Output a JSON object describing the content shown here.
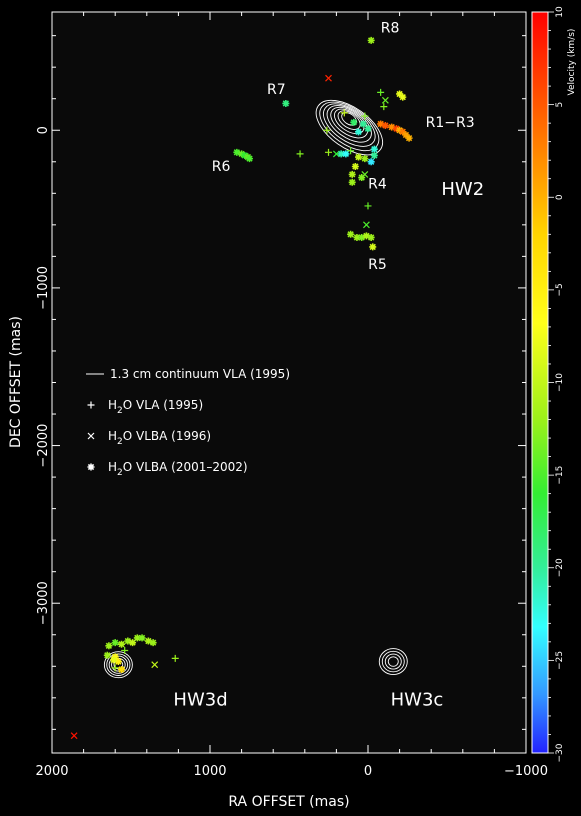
{
  "chart_data": {
    "type": "scatter",
    "xlabel": "RA OFFSET (mas)",
    "ylabel": "DEC OFFSET (mas)",
    "xlim": [
      2000,
      -1000
    ],
    "ylim": [
      -3950,
      750
    ],
    "xticks": [
      2000,
      1000,
      0,
      -1000
    ],
    "yticks": [
      0,
      -1000,
      -2000,
      -3000
    ],
    "grid": false,
    "background_color": "#0a0a0a",
    "colorbar": {
      "label": "Velocity (km/s)",
      "range": [
        -30,
        10
      ],
      "ticks": [
        10,
        5,
        0,
        -5,
        -10,
        -15,
        -20,
        -25,
        -30
      ],
      "colormap": "jet"
    },
    "legend": {
      "placement": "center-left",
      "entries": [
        {
          "marker": "line",
          "text": "1.3 cm continuum VLA (1995)"
        },
        {
          "marker": "plus",
          "prefix": "H",
          "subscript": "2",
          "suffix": "O VLA (1995)"
        },
        {
          "marker": "cross",
          "prefix": "H",
          "subscript": "2",
          "suffix": "O VLBA (1996)"
        },
        {
          "marker": "star",
          "prefix": "H",
          "subscript": "2",
          "suffix": "O VLBA (2001–2002)"
        }
      ]
    },
    "annotations": [
      {
        "text": "R8",
        "x": -140,
        "y": 620
      },
      {
        "text": "R7",
        "x": 580,
        "y": 230
      },
      {
        "text": "R1−R3",
        "x": -520,
        "y": 20
      },
      {
        "text": "R6",
        "x": 930,
        "y": -260
      },
      {
        "text": "R4",
        "x": -60,
        "y": -370
      },
      {
        "text": "HW2",
        "x": -600,
        "y": -410
      },
      {
        "text": "R5",
        "x": -60,
        "y": -880
      },
      {
        "text": "HW3d",
        "x": 1060,
        "y": -3650
      },
      {
        "text": "HW3c",
        "x": -310,
        "y": -3650
      }
    ],
    "continuum_sources": [
      {
        "name": "HW2",
        "x": 120,
        "y": 80,
        "levels": 8
      },
      {
        "name": "HW3d",
        "x": 1580,
        "y": -3390,
        "levels": 5
      },
      {
        "name": "HW3c",
        "x": -160,
        "y": -3370,
        "levels": 4
      }
    ],
    "series": [
      {
        "name": "H2O VLA (1995)",
        "marker": "plus",
        "points": [
          {
            "x": 260,
            "y": 0,
            "v": -12
          },
          {
            "x": 110,
            "y": -130,
            "v": -14
          },
          {
            "x": 430,
            "y": -150,
            "v": -13
          },
          {
            "x": 250,
            "y": -140,
            "v": -12
          },
          {
            "x": 150,
            "y": 110,
            "v": -10
          },
          {
            "x": 20,
            "y": 90,
            "v": -13
          },
          {
            "x": -80,
            "y": 240,
            "v": -14
          },
          {
            "x": -100,
            "y": 150,
            "v": -13
          },
          {
            "x": 0,
            "y": -480,
            "v": -14
          },
          {
            "x": 1540,
            "y": -3300,
            "v": -13
          },
          {
            "x": 1220,
            "y": -3350,
            "v": -12
          },
          {
            "x": 1600,
            "y": -3410,
            "v": -12
          }
        ]
      },
      {
        "name": "H2O VLBA (1996)",
        "marker": "cross",
        "points": [
          {
            "x": 250,
            "y": 330,
            "v": 8
          },
          {
            "x": -110,
            "y": 190,
            "v": -14
          },
          {
            "x": 200,
            "y": -150,
            "v": -16
          },
          {
            "x": 20,
            "y": -280,
            "v": -14
          },
          {
            "x": 10,
            "y": -600,
            "v": -15
          },
          {
            "x": 1350,
            "y": -3390,
            "v": -10
          },
          {
            "x": 1860,
            "y": -3840,
            "v": 9
          }
        ]
      },
      {
        "name": "H2O VLBA (2001–2002)",
        "marker": "star",
        "points": [
          {
            "x": -20,
            "y": 570,
            "v": -12
          },
          {
            "x": -200,
            "y": 230,
            "v": -8
          },
          {
            "x": -220,
            "y": 210,
            "v": -8
          },
          {
            "x": 520,
            "y": 170,
            "v": -19
          },
          {
            "x": 90,
            "y": 50,
            "v": -18
          },
          {
            "x": 30,
            "y": 40,
            "v": -20
          },
          {
            "x": 60,
            "y": -10,
            "v": -22
          },
          {
            "x": 0,
            "y": 10,
            "v": -20
          },
          {
            "x": -80,
            "y": 40,
            "v": 3
          },
          {
            "x": -110,
            "y": 30,
            "v": 5
          },
          {
            "x": -150,
            "y": 20,
            "v": 2
          },
          {
            "x": -180,
            "y": 10,
            "v": 6
          },
          {
            "x": -200,
            "y": 0,
            "v": 0
          },
          {
            "x": -220,
            "y": -10,
            "v": 3
          },
          {
            "x": -240,
            "y": -30,
            "v": 1
          },
          {
            "x": -260,
            "y": -50,
            "v": 0
          },
          {
            "x": 170,
            "y": -150,
            "v": -21
          },
          {
            "x": 140,
            "y": -150,
            "v": -23
          },
          {
            "x": -40,
            "y": -120,
            "v": -22
          },
          {
            "x": -40,
            "y": -160,
            "v": -20
          },
          {
            "x": -20,
            "y": -200,
            "v": -24
          },
          {
            "x": 20,
            "y": -180,
            "v": -12
          },
          {
            "x": 60,
            "y": -170,
            "v": -10
          },
          {
            "x": 80,
            "y": -230,
            "v": -9
          },
          {
            "x": 100,
            "y": -280,
            "v": -11
          },
          {
            "x": 100,
            "y": -330,
            "v": -12
          },
          {
            "x": 40,
            "y": -300,
            "v": -13
          },
          {
            "x": 830,
            "y": -140,
            "v": -15
          },
          {
            "x": 800,
            "y": -150,
            "v": -14
          },
          {
            "x": 780,
            "y": -160,
            "v": -16
          },
          {
            "x": 760,
            "y": -170,
            "v": -14
          },
          {
            "x": 750,
            "y": -180,
            "v": -15
          },
          {
            "x": 110,
            "y": -660,
            "v": -12
          },
          {
            "x": 70,
            "y": -680,
            "v": -12
          },
          {
            "x": 40,
            "y": -680,
            "v": -13
          },
          {
            "x": 10,
            "y": -670,
            "v": -11
          },
          {
            "x": -20,
            "y": -680,
            "v": -12
          },
          {
            "x": -30,
            "y": -740,
            "v": -9
          },
          {
            "x": 1640,
            "y": -3270,
            "v": -12
          },
          {
            "x": 1600,
            "y": -3250,
            "v": -14
          },
          {
            "x": 1560,
            "y": -3260,
            "v": -11
          },
          {
            "x": 1520,
            "y": -3240,
            "v": -12
          },
          {
            "x": 1490,
            "y": -3250,
            "v": -10
          },
          {
            "x": 1460,
            "y": -3220,
            "v": -12
          },
          {
            "x": 1430,
            "y": -3220,
            "v": -13
          },
          {
            "x": 1390,
            "y": -3240,
            "v": -11
          },
          {
            "x": 1360,
            "y": -3250,
            "v": -12
          },
          {
            "x": 1600,
            "y": -3340,
            "v": -6
          },
          {
            "x": 1580,
            "y": -3370,
            "v": -5
          },
          {
            "x": 1560,
            "y": -3420,
            "v": -3
          },
          {
            "x": 1610,
            "y": -3360,
            "v": -8
          },
          {
            "x": 1650,
            "y": -3330,
            "v": -12
          }
        ]
      }
    ]
  }
}
